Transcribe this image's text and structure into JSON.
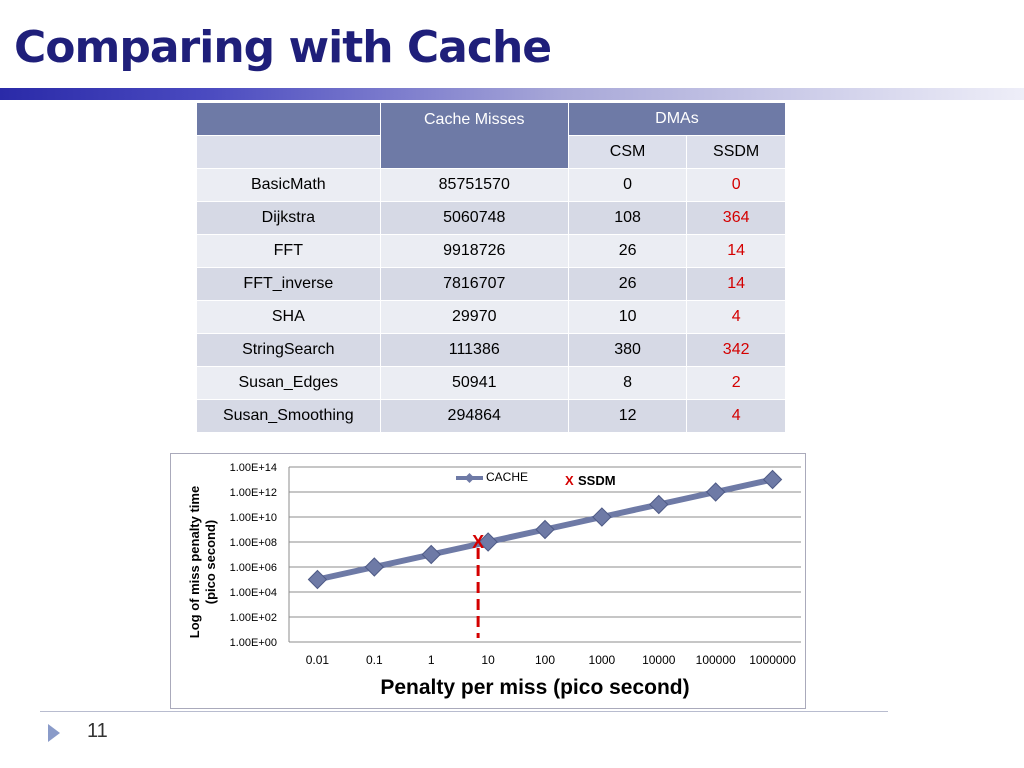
{
  "title": "Comparing with Cache",
  "table": {
    "header": {
      "cache": "Cache Misses",
      "dmas": "DMAs",
      "csm": "CSM",
      "ssdm": "SSDM"
    },
    "rows": [
      {
        "name": "BasicMath",
        "misses": "85751570",
        "csm": "0",
        "ssdm": "0"
      },
      {
        "name": "Dijkstra",
        "misses": "5060748",
        "csm": "108",
        "ssdm": "364"
      },
      {
        "name": "FFT",
        "misses": "9918726",
        "csm": "26",
        "ssdm": "14"
      },
      {
        "name": "FFT_inverse",
        "misses": "7816707",
        "csm": "26",
        "ssdm": "14"
      },
      {
        "name": "SHA",
        "misses": "29970",
        "csm": "10",
        "ssdm": "4"
      },
      {
        "name": "StringSearch",
        "misses": "111386",
        "csm": "380",
        "ssdm": "342"
      },
      {
        "name": "Susan_Edges",
        "misses": "50941",
        "csm": "8",
        "ssdm": "2"
      },
      {
        "name": "Susan_Smoothing",
        "misses": "294864",
        "csm": "12",
        "ssdm": "4"
      }
    ],
    "colors": {
      "header": "#6e7aa6",
      "ssdm_text": "#d40000"
    }
  },
  "chart_data": {
    "type": "line",
    "categories": [
      "0.01",
      "0.1",
      "1",
      "10",
      "100",
      "1000",
      "10000",
      "100000",
      "1000000"
    ],
    "y_tick_labels": [
      "1.00E+00",
      "1.00E+02",
      "1.00E+04",
      "1.00E+06",
      "1.00E+08",
      "1.00E+10",
      "1.00E+12",
      "1.00E+14"
    ],
    "ylim_exponent": [
      0,
      14
    ],
    "y_log_scale": true,
    "series": [
      {
        "name": "CACHE",
        "log10_values": [
          5,
          6,
          7,
          8,
          9,
          10,
          11,
          12,
          13
        ],
        "color": "#6e7aa6"
      }
    ],
    "marker": {
      "label": "X",
      "legend": "SSDM",
      "x": "10",
      "log10_y": 8,
      "color": "#d40000"
    },
    "xlabel": "Penalty per miss (pico second)",
    "ylabel": "Log of miss penalty time (pico second)",
    "grid": true,
    "legend_position": "top"
  },
  "footer": {
    "page": "11"
  }
}
